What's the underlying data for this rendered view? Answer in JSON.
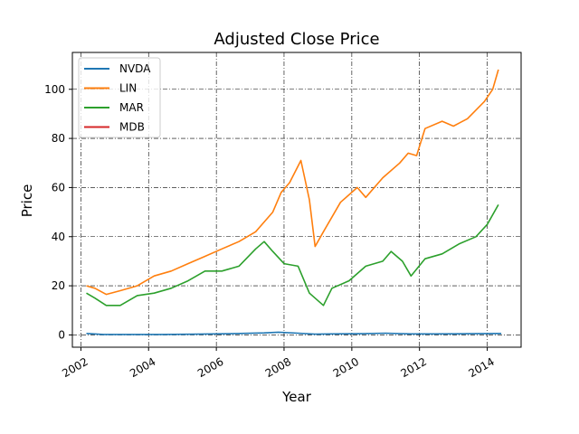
{
  "chart_data": {
    "type": "line",
    "title": "Adjusted Close Price",
    "xlabel": "Year",
    "ylabel": "Price",
    "xlim": [
      "2001-10-01",
      "2015-01-01"
    ],
    "ylim": [
      -5,
      115
    ],
    "x_ticks": [
      {
        "date": "2002-01-01",
        "label": "2002"
      },
      {
        "date": "2004-01-01",
        "label": "2004"
      },
      {
        "date": "2006-01-01",
        "label": "2006"
      },
      {
        "date": "2008-01-01",
        "label": "2008"
      },
      {
        "date": "2010-01-01",
        "label": "2010"
      },
      {
        "date": "2012-01-01",
        "label": "2012"
      },
      {
        "date": "2014-01-01",
        "label": "2014"
      }
    ],
    "y_ticks": [
      0,
      20,
      40,
      60,
      80,
      100
    ],
    "grid": true,
    "legend_position": "top-left",
    "series": [
      {
        "name": "NVDA",
        "color": "#1f77b4",
        "points": [
          [
            "2002-03-01",
            0.6
          ],
          [
            "2002-09-01",
            0.2
          ],
          [
            "2003-06-01",
            0.2
          ],
          [
            "2004-06-01",
            0.2
          ],
          [
            "2005-06-01",
            0.3
          ],
          [
            "2006-06-01",
            0.5
          ],
          [
            "2007-06-01",
            0.8
          ],
          [
            "2007-11-01",
            1.1
          ],
          [
            "2008-06-01",
            0.7
          ],
          [
            "2008-12-01",
            0.3
          ],
          [
            "2009-06-01",
            0.4
          ],
          [
            "2010-04-01",
            0.5
          ],
          [
            "2011-01-01",
            0.7
          ],
          [
            "2011-10-01",
            0.4
          ],
          [
            "2012-06-01",
            0.4
          ],
          [
            "2013-06-01",
            0.5
          ],
          [
            "2014-06-01",
            0.6
          ]
        ]
      },
      {
        "name": "LIN",
        "color": "#ff7f0e",
        "points": [
          [
            "2002-03-01",
            20
          ],
          [
            "2002-06-01",
            19
          ],
          [
            "2002-10-01",
            16.5
          ],
          [
            "2003-03-01",
            18
          ],
          [
            "2003-09-01",
            20
          ],
          [
            "2004-03-01",
            24
          ],
          [
            "2004-09-01",
            26
          ],
          [
            "2005-03-01",
            29
          ],
          [
            "2005-09-01",
            32
          ],
          [
            "2006-03-01",
            35
          ],
          [
            "2006-09-01",
            38
          ],
          [
            "2007-03-01",
            42
          ],
          [
            "2007-09-01",
            50
          ],
          [
            "2007-12-01",
            58
          ],
          [
            "2008-03-01",
            62
          ],
          [
            "2008-07-01",
            71
          ],
          [
            "2008-10-01",
            55
          ],
          [
            "2008-12-01",
            36
          ],
          [
            "2009-03-01",
            42
          ],
          [
            "2009-09-01",
            54
          ],
          [
            "2010-03-01",
            60
          ],
          [
            "2010-06-01",
            56
          ],
          [
            "2010-12-01",
            64
          ],
          [
            "2011-06-01",
            70
          ],
          [
            "2011-09-01",
            74
          ],
          [
            "2011-12-01",
            73
          ],
          [
            "2012-03-01",
            84
          ],
          [
            "2012-09-01",
            87
          ],
          [
            "2013-01-01",
            85
          ],
          [
            "2013-06-01",
            88
          ],
          [
            "2013-12-01",
            95
          ],
          [
            "2014-03-01",
            100
          ],
          [
            "2014-05-01",
            108
          ]
        ]
      },
      {
        "name": "MAR",
        "color": "#2ca02c",
        "points": [
          [
            "2002-03-01",
            17
          ],
          [
            "2002-06-01",
            15
          ],
          [
            "2002-10-01",
            12
          ],
          [
            "2003-03-01",
            12
          ],
          [
            "2003-09-01",
            16
          ],
          [
            "2004-03-01",
            17
          ],
          [
            "2004-09-01",
            19
          ],
          [
            "2005-03-01",
            22
          ],
          [
            "2005-09-01",
            26
          ],
          [
            "2006-03-01",
            26
          ],
          [
            "2006-09-01",
            28
          ],
          [
            "2007-03-01",
            35
          ],
          [
            "2007-06-01",
            38
          ],
          [
            "2007-09-01",
            34
          ],
          [
            "2008-01-01",
            29
          ],
          [
            "2008-06-01",
            28
          ],
          [
            "2008-10-01",
            17
          ],
          [
            "2009-03-01",
            12
          ],
          [
            "2009-06-01",
            19
          ],
          [
            "2009-12-01",
            22
          ],
          [
            "2010-06-01",
            28
          ],
          [
            "2010-12-01",
            30
          ],
          [
            "2011-03-01",
            34
          ],
          [
            "2011-07-01",
            30
          ],
          [
            "2011-10-01",
            24
          ],
          [
            "2012-03-01",
            31
          ],
          [
            "2012-09-01",
            33
          ],
          [
            "2013-03-01",
            37
          ],
          [
            "2013-09-01",
            40
          ],
          [
            "2014-01-01",
            45
          ],
          [
            "2014-05-01",
            53
          ]
        ]
      },
      {
        "name": "MDB",
        "color": "#d62728",
        "points": []
      }
    ]
  }
}
